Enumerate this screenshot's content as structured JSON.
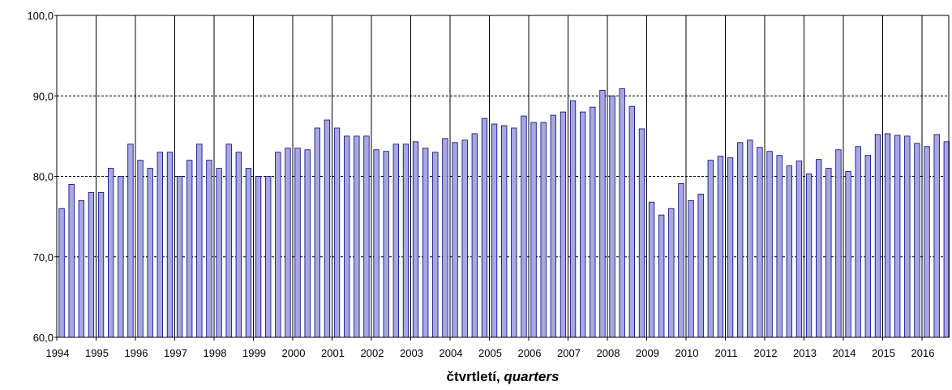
{
  "chart_data": {
    "type": "bar",
    "title": "",
    "xlabel": "čtvrtletí, quarters",
    "xlabel_parts": {
      "main": "čtvrtletí, ",
      "italic": "quarters"
    },
    "ylabel": "",
    "ylim": [
      60,
      100
    ],
    "yticks": [
      "60,0",
      "70,0",
      "80,0",
      "90,0",
      "100,0"
    ],
    "ytick_values": [
      60,
      70,
      80,
      90,
      100
    ],
    "dashed_gridlines": [
      70,
      80,
      90
    ],
    "years": [
      "1994",
      "1995",
      "1996",
      "1997",
      "1998",
      "1999",
      "2000",
      "2001",
      "2002",
      "2003",
      "2004",
      "2005",
      "2006",
      "2007",
      "2008",
      "2009",
      "2010",
      "2011",
      "2012",
      "2013",
      "2014",
      "2015",
      "2016"
    ],
    "bar_color": "#a8a8e0",
    "bar_edge_color": "#000080",
    "values": [
      76,
      79,
      77,
      78,
      78,
      81,
      80,
      84,
      82,
      81,
      83,
      83,
      80,
      82,
      84,
      82,
      81,
      84,
      83,
      81,
      80,
      80,
      83,
      83.5,
      83.5,
      83.3,
      86,
      87,
      86,
      85,
      85,
      85,
      83.3,
      83.1,
      84,
      84,
      84.3,
      83.5,
      83,
      84.7,
      84.2,
      84.5,
      85.3,
      87.2,
      86.5,
      86.3,
      86,
      87.5,
      86.7,
      86.7,
      87.6,
      88,
      89.4,
      88,
      88.6,
      90.7,
      90,
      90.9,
      88.7,
      85.9,
      76.8,
      75.2,
      76,
      79.1,
      77,
      77.8,
      82,
      82.5,
      82.3,
      84.2,
      84.5,
      83.6,
      83.1,
      82.6,
      81.3,
      81.9,
      80.3,
      82.1,
      81,
      83.3,
      80.6,
      83.7,
      82.6,
      85.2,
      85.3,
      85.1,
      85,
      84.1,
      83.7,
      85.2,
      84.3
    ]
  }
}
